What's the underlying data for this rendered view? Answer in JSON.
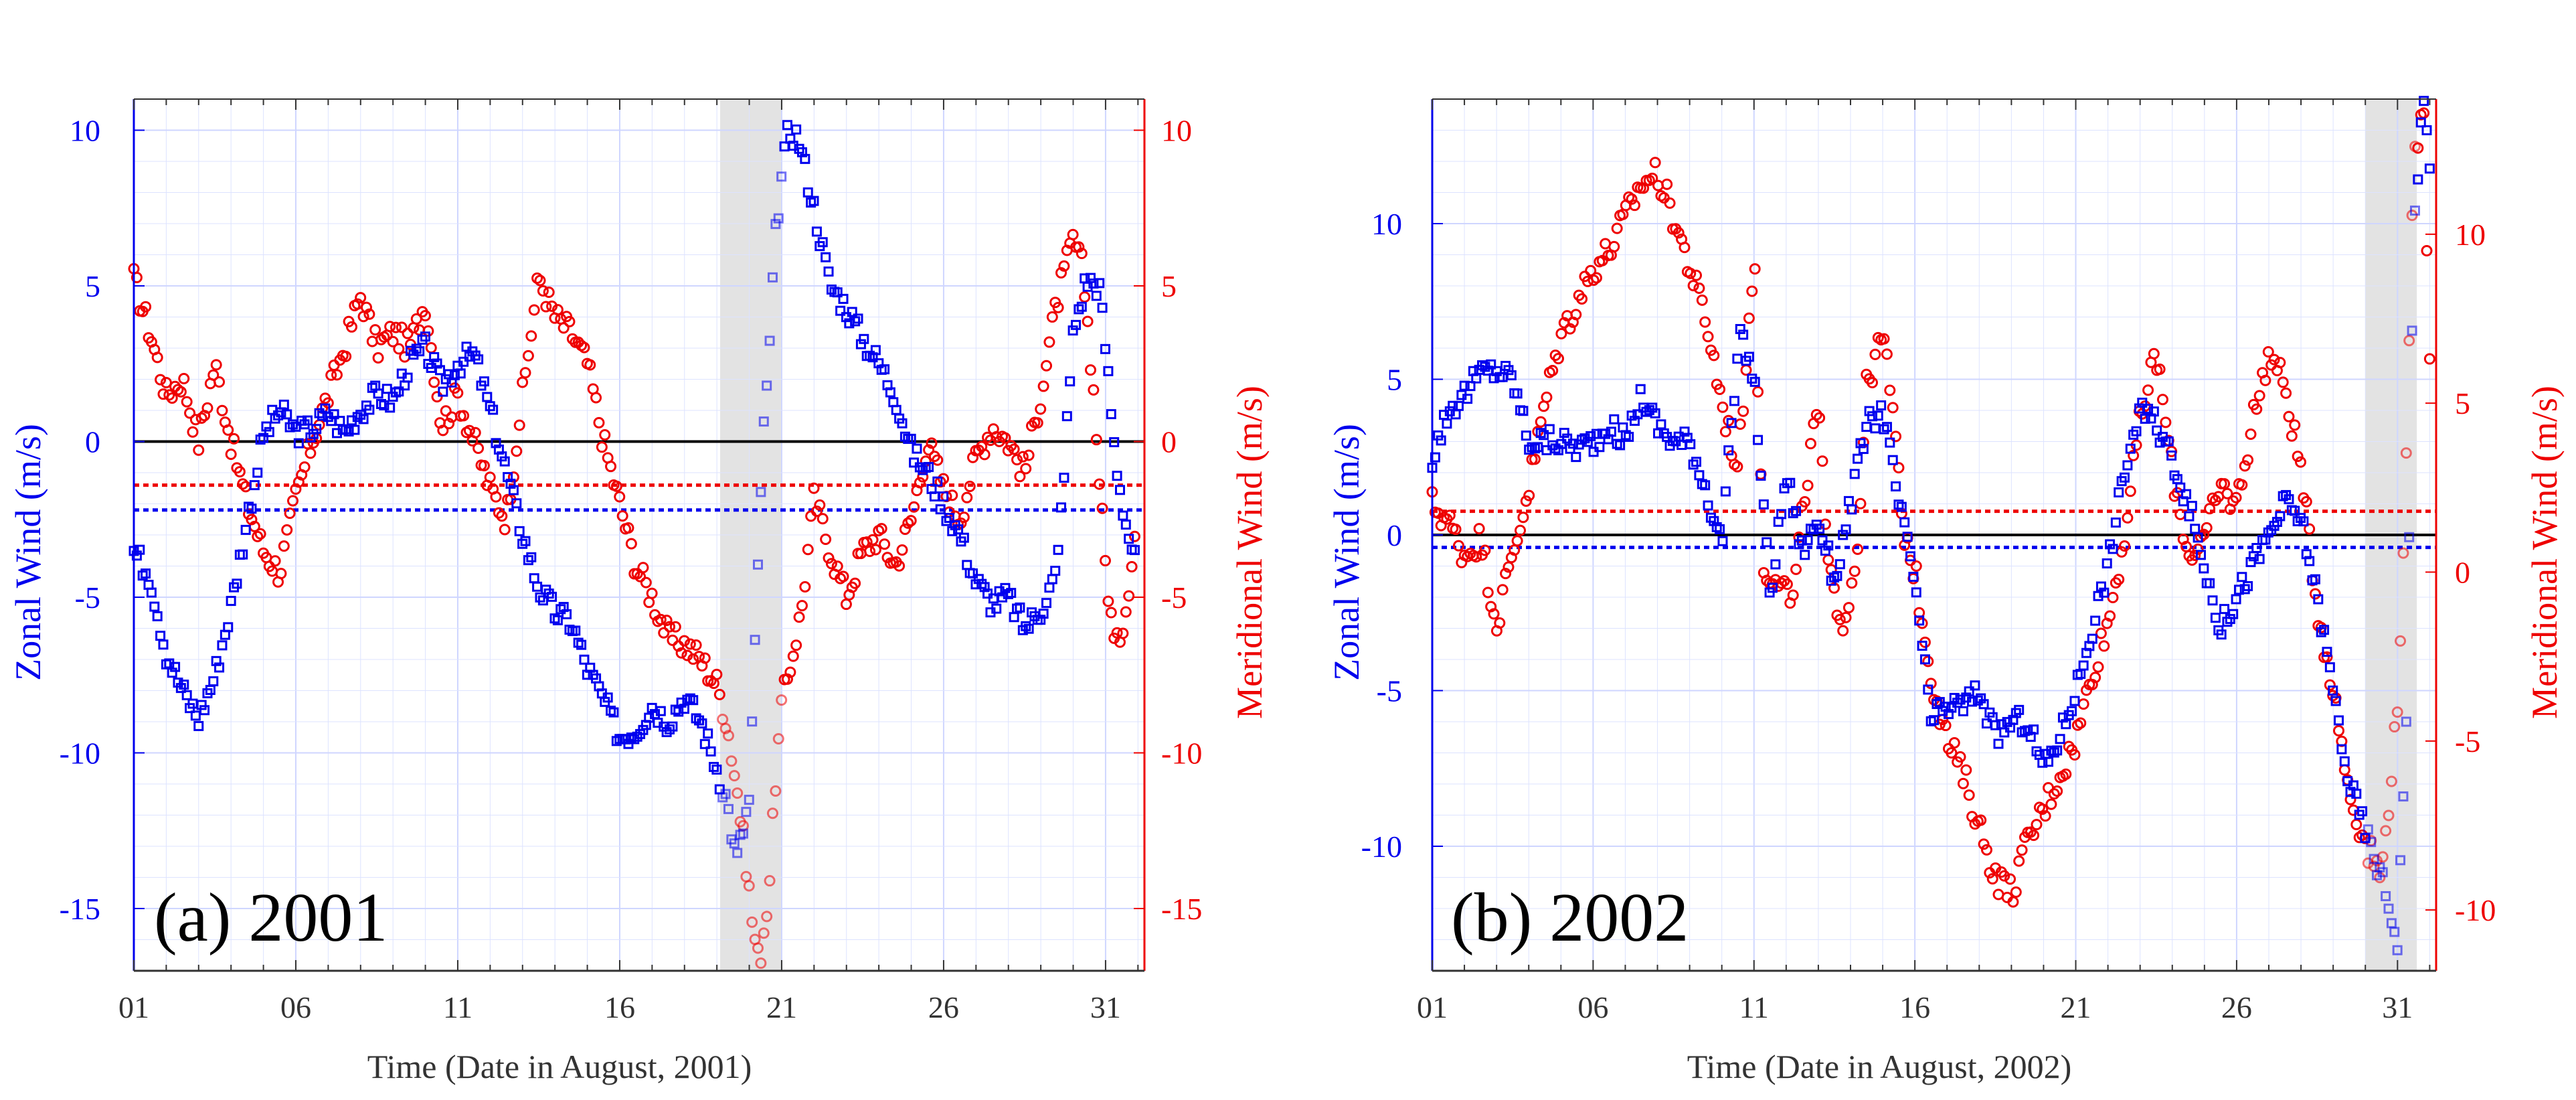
{
  "figure": {
    "colors": {
      "zonal": "#0000ee",
      "meridional": "#ee0000",
      "shade": "#e3e3e3",
      "grid": "#dde3ff",
      "zero": "#000000"
    }
  },
  "chart_data": [
    {
      "type": "scatter",
      "panel_label": "(a) 2001",
      "xlabel": "Time (Date in August, 2001)",
      "ylabel_left": "Zonal Wind (m/s)",
      "ylabel_right": "Meridional Wind (m/s)",
      "x_ticks": [
        "01",
        "06",
        "11",
        "16",
        "21",
        "26",
        "31"
      ],
      "x_tick_values": [
        1,
        6,
        11,
        16,
        21,
        26,
        31
      ],
      "xlim": [
        1,
        32.2
      ],
      "ylim_left": [
        -17,
        11
      ],
      "ylim_right": [
        -17,
        11
      ],
      "yticks_left": [
        10,
        5,
        0,
        -5,
        -10,
        -15
      ],
      "yticks_right": [
        10,
        5,
        0,
        -5,
        -10,
        -15
      ],
      "shaded_x": [
        19.1,
        21.0
      ],
      "mean_zonal": -2.2,
      "mean_meridional": -1.4,
      "zonal_path": [
        [
          1.0,
          -3.5
        ],
        [
          1.5,
          -4.3
        ],
        [
          2.0,
          -6.8
        ],
        [
          2.5,
          -8.0
        ],
        [
          3.0,
          -8.9
        ],
        [
          3.5,
          -7.5
        ],
        [
          4.0,
          -5.3
        ],
        [
          4.5,
          -2.5
        ],
        [
          5.0,
          0.2
        ],
        [
          5.5,
          1.0
        ],
        [
          6.0,
          0.3
        ],
        [
          6.5,
          0.4
        ],
        [
          7.0,
          0.9
        ],
        [
          7.5,
          0.3
        ],
        [
          8.0,
          1.0
        ],
        [
          8.5,
          1.5
        ],
        [
          9.0,
          1.3
        ],
        [
          9.5,
          2.5
        ],
        [
          10.0,
          3.0
        ],
        [
          10.5,
          1.8
        ],
        [
          11.0,
          2.5
        ],
        [
          11.5,
          2.8
        ],
        [
          12.0,
          1.0
        ],
        [
          12.5,
          -1.0
        ],
        [
          13.0,
          -3.0
        ],
        [
          13.5,
          -4.7
        ],
        [
          14.0,
          -5.5
        ],
        [
          14.5,
          -5.8
        ],
        [
          15.0,
          -7.3
        ],
        [
          15.5,
          -8.3
        ],
        [
          16.0,
          -9.5
        ],
        [
          16.5,
          -9.3
        ],
        [
          17.0,
          -8.5
        ],
        [
          17.5,
          -9.0
        ],
        [
          18.0,
          -8.2
        ],
        [
          18.5,
          -9.0
        ],
        [
          19.0,
          -10.5
        ],
        [
          19.3,
          -11.5
        ],
        [
          19.6,
          -13.5
        ],
        [
          20.0,
          -11.5
        ],
        [
          20.2,
          -6.0
        ],
        [
          20.4,
          -0.3
        ],
        [
          20.6,
          2.5
        ],
        [
          20.8,
          6.5
        ],
        [
          21.0,
          8.5
        ],
        [
          21.2,
          10.0
        ],
        [
          21.5,
          9.8
        ],
        [
          22.0,
          7.5
        ],
        [
          22.5,
          5.0
        ],
        [
          23.0,
          4.3
        ],
        [
          23.5,
          3.3
        ],
        [
          24.0,
          2.5
        ],
        [
          24.5,
          1.5
        ],
        [
          25.0,
          -0.3
        ],
        [
          25.5,
          -1.0
        ],
        [
          26.0,
          -2.0
        ],
        [
          26.5,
          -3.0
        ],
        [
          27.0,
          -4.5
        ],
        [
          27.5,
          -5.2
        ],
        [
          28.0,
          -5.0
        ],
        [
          28.5,
          -6.0
        ],
        [
          29.0,
          -5.4
        ],
        [
          29.5,
          -4.2
        ],
        [
          30.0,
          3.5
        ],
        [
          30.4,
          5.2
        ],
        [
          30.8,
          5.0
        ],
        [
          31.0,
          3.0
        ],
        [
          31.3,
          -0.5
        ],
        [
          31.6,
          -2.5
        ],
        [
          31.9,
          -3.8
        ]
      ],
      "meridional_path": [
        [
          1.0,
          5.2
        ],
        [
          1.5,
          3.5
        ],
        [
          2.0,
          1.5
        ],
        [
          2.5,
          2.0
        ],
        [
          3.0,
          0.0
        ],
        [
          3.5,
          2.5
        ],
        [
          4.0,
          0.0
        ],
        [
          4.5,
          -2.0
        ],
        [
          5.0,
          -3.5
        ],
        [
          5.5,
          -4.2
        ],
        [
          6.0,
          -1.8
        ],
        [
          6.5,
          0.0
        ],
        [
          7.0,
          1.5
        ],
        [
          7.5,
          3.0
        ],
        [
          8.0,
          4.7
        ],
        [
          8.5,
          3.0
        ],
        [
          9.0,
          3.5
        ],
        [
          9.5,
          3.0
        ],
        [
          10.0,
          4.5
        ],
        [
          10.5,
          0.5
        ],
        [
          11.0,
          1.5
        ],
        [
          11.5,
          0.0
        ],
        [
          12.0,
          -1.5
        ],
        [
          12.5,
          -2.5
        ],
        [
          13.0,
          1.5
        ],
        [
          13.5,
          5.3
        ],
        [
          14.0,
          4.0
        ],
        [
          14.5,
          3.5
        ],
        [
          15.0,
          2.5
        ],
        [
          15.5,
          0.0
        ],
        [
          16.0,
          -2.0
        ],
        [
          16.5,
          -4.0
        ],
        [
          17.0,
          -5.0
        ],
        [
          17.5,
          -6.3
        ],
        [
          18.0,
          -6.5
        ],
        [
          18.5,
          -7.0
        ],
        [
          19.0,
          -7.8
        ],
        [
          19.3,
          -9.0
        ],
        [
          19.6,
          -11.0
        ],
        [
          19.9,
          -13.5
        ],
        [
          20.1,
          -15.5
        ],
        [
          20.3,
          -16.8
        ],
        [
          20.6,
          -14.5
        ],
        [
          20.8,
          -11.0
        ],
        [
          21.0,
          -8.5
        ],
        [
          21.3,
          -7.0
        ],
        [
          21.6,
          -5.5
        ],
        [
          22.0,
          -1.8
        ],
        [
          22.5,
          -3.5
        ],
        [
          23.0,
          -5.0
        ],
        [
          23.5,
          -3.5
        ],
        [
          24.0,
          -3.0
        ],
        [
          24.5,
          -4.0
        ],
        [
          25.0,
          -2.5
        ],
        [
          25.5,
          0.0
        ],
        [
          26.0,
          -1.5
        ],
        [
          26.5,
          -2.5
        ],
        [
          27.0,
          -0.5
        ],
        [
          27.5,
          0.5
        ],
        [
          28.0,
          0.0
        ],
        [
          28.5,
          -1.0
        ],
        [
          29.0,
          1.5
        ],
        [
          29.5,
          4.5
        ],
        [
          30.0,
          6.5
        ],
        [
          30.3,
          5.5
        ],
        [
          30.6,
          2.0
        ],
        [
          31.0,
          -4.0
        ],
        [
          31.3,
          -6.8
        ],
        [
          31.6,
          -5.5
        ],
        [
          31.9,
          -3.0
        ]
      ]
    },
    {
      "type": "scatter",
      "panel_label": "(b) 2002",
      "xlabel": "Time (Date in August, 2002)",
      "ylabel_left": "Zonal Wind (m/s)",
      "ylabel_right": "Meridional Wind (m/s)",
      "x_ticks": [
        "01",
        "06",
        "11",
        "16",
        "21",
        "26",
        "31"
      ],
      "x_tick_values": [
        1,
        6,
        11,
        16,
        21,
        26,
        31
      ],
      "xlim": [
        1,
        32.2
      ],
      "ylim_left": [
        -14,
        14
      ],
      "ylim_right": [
        -11.8,
        14
      ],
      "yticks_left": [
        10,
        5,
        0,
        -5,
        -10
      ],
      "yticks_right": [
        10,
        5,
        0,
        -5,
        -10
      ],
      "shaded_x": [
        30.0,
        31.6
      ],
      "mean_zonal": -0.4,
      "mean_meridional": 1.8,
      "zonal_path": [
        [
          1.0,
          2.5
        ],
        [
          1.5,
          4.0
        ],
        [
          2.0,
          4.5
        ],
        [
          2.5,
          5.2
        ],
        [
          3.0,
          5.3
        ],
        [
          3.5,
          5.0
        ],
        [
          4.0,
          3.0
        ],
        [
          4.5,
          3.0
        ],
        [
          5.0,
          3.0
        ],
        [
          5.5,
          2.8
        ],
        [
          6.0,
          3.0
        ],
        [
          6.5,
          3.5
        ],
        [
          7.0,
          3.0
        ],
        [
          7.5,
          4.5
        ],
        [
          8.0,
          3.5
        ],
        [
          8.5,
          3.0
        ],
        [
          9.0,
          3.0
        ],
        [
          9.5,
          1.5
        ],
        [
          10.0,
          -0.3
        ],
        [
          10.3,
          3.5
        ],
        [
          10.6,
          6.5
        ],
        [
          11.0,
          5.0
        ],
        [
          11.5,
          -2.0
        ],
        [
          12.0,
          2.0
        ],
        [
          12.5,
          -0.5
        ],
        [
          13.0,
          0.5
        ],
        [
          13.5,
          -1.5
        ],
        [
          14.0,
          1.0
        ],
        [
          14.5,
          3.5
        ],
        [
          15.0,
          4.0
        ],
        [
          15.5,
          1.0
        ],
        [
          16.0,
          -1.5
        ],
        [
          16.5,
          -6.0
        ],
        [
          17.0,
          -5.5
        ],
        [
          17.5,
          -5.5
        ],
        [
          18.0,
          -5.0
        ],
        [
          18.5,
          -6.5
        ],
        [
          19.0,
          -6.0
        ],
        [
          19.5,
          -6.0
        ],
        [
          20.0,
          -7.5
        ],
        [
          20.5,
          -6.5
        ],
        [
          21.0,
          -5.0
        ],
        [
          21.5,
          -3.0
        ],
        [
          22.0,
          -1.0
        ],
        [
          22.5,
          2.0
        ],
        [
          23.0,
          4.0
        ],
        [
          23.5,
          3.5
        ],
        [
          24.0,
          2.5
        ],
        [
          24.5,
          1.0
        ],
        [
          25.0,
          -1.0
        ],
        [
          25.5,
          -3.0
        ],
        [
          26.0,
          -2.0
        ],
        [
          26.5,
          -1.0
        ],
        [
          27.0,
          0.0
        ],
        [
          27.5,
          1.0
        ],
        [
          28.0,
          0.5
        ],
        [
          28.5,
          -2.0
        ],
        [
          29.0,
          -5.0
        ],
        [
          29.5,
          -8.0
        ],
        [
          30.0,
          -9.5
        ],
        [
          30.5,
          -11.0
        ],
        [
          31.0,
          -13.0
        ],
        [
          31.3,
          -5.0
        ],
        [
          31.5,
          10.0
        ],
        [
          31.8,
          14.0
        ],
        [
          32.0,
          12.0
        ]
      ],
      "meridional_path": [
        [
          1.0,
          2.0
        ],
        [
          1.5,
          1.5
        ],
        [
          2.0,
          0.5
        ],
        [
          2.5,
          1.0
        ],
        [
          3.0,
          -1.5
        ],
        [
          3.5,
          0.5
        ],
        [
          4.0,
          2.5
        ],
        [
          4.5,
          5.0
        ],
        [
          5.0,
          7.0
        ],
        [
          5.5,
          8.0
        ],
        [
          6.0,
          9.0
        ],
        [
          6.5,
          9.5
        ],
        [
          7.0,
          10.5
        ],
        [
          7.5,
          11.5
        ],
        [
          8.0,
          11.8
        ],
        [
          8.5,
          10.5
        ],
        [
          9.0,
          9.0
        ],
        [
          9.5,
          7.5
        ],
        [
          10.0,
          5.0
        ],
        [
          10.5,
          3.0
        ],
        [
          11.0,
          9.5
        ],
        [
          11.3,
          0.0
        ],
        [
          11.8,
          0.0
        ],
        [
          12.2,
          -1.0
        ],
        [
          12.6,
          2.5
        ],
        [
          13.0,
          5.0
        ],
        [
          13.3,
          0.0
        ],
        [
          13.8,
          -1.5
        ],
        [
          14.2,
          0.5
        ],
        [
          14.5,
          5.5
        ],
        [
          15.0,
          7.0
        ],
        [
          15.3,
          5.0
        ],
        [
          15.6,
          1.5
        ],
        [
          16.0,
          0.0
        ],
        [
          16.5,
          -3.0
        ],
        [
          17.0,
          -5.0
        ],
        [
          17.5,
          -6.0
        ],
        [
          18.0,
          -7.5
        ],
        [
          18.5,
          -9.0
        ],
        [
          19.0,
          -9.5
        ],
        [
          19.5,
          -8.0
        ],
        [
          20.0,
          -7.0
        ],
        [
          20.5,
          -6.0
        ],
        [
          21.0,
          -5.0
        ],
        [
          21.5,
          -3.0
        ],
        [
          22.0,
          -1.5
        ],
        [
          22.5,
          1.0
        ],
        [
          23.0,
          4.5
        ],
        [
          23.5,
          6.5
        ],
        [
          24.0,
          3.0
        ],
        [
          24.5,
          0.5
        ],
        [
          25.0,
          1.0
        ],
        [
          25.5,
          2.5
        ],
        [
          26.0,
          2.0
        ],
        [
          26.5,
          4.5
        ],
        [
          27.0,
          6.5
        ],
        [
          27.5,
          5.5
        ],
        [
          28.0,
          3.0
        ],
        [
          28.5,
          -1.0
        ],
        [
          29.0,
          -3.5
        ],
        [
          29.5,
          -6.5
        ],
        [
          30.0,
          -8.0
        ],
        [
          30.5,
          -9.0
        ],
        [
          31.0,
          -4.0
        ],
        [
          31.3,
          4.0
        ],
        [
          31.5,
          12.0
        ],
        [
          31.8,
          14.0
        ],
        [
          32.0,
          6.5
        ]
      ]
    }
  ]
}
